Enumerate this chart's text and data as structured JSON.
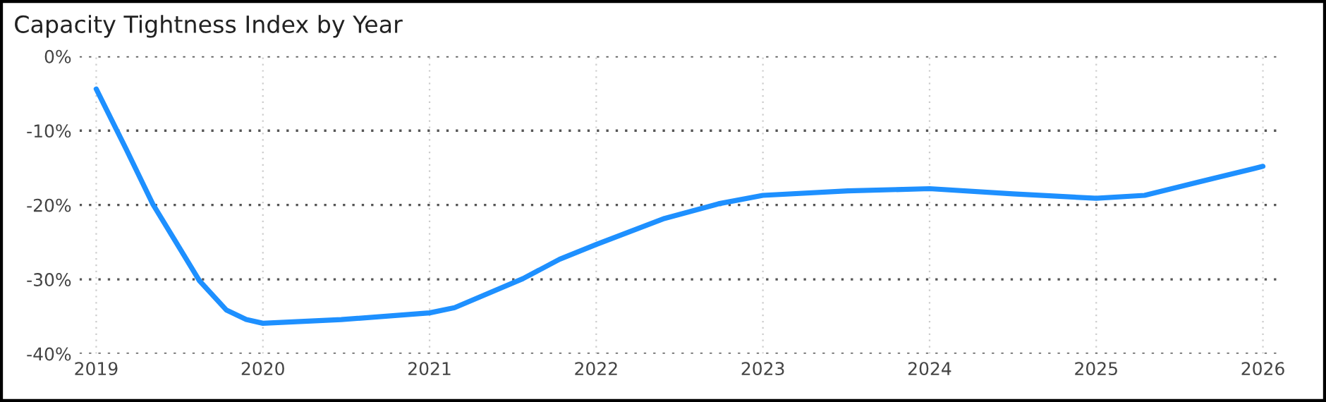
{
  "chart_data": {
    "type": "line",
    "title": "Capacity Tightness Index by Year",
    "x": [
      2019,
      2019.18,
      2019.34,
      2019.62,
      2019.78,
      2019.9,
      2020,
      2020.47,
      2021,
      2021.15,
      2021.56,
      2021.78,
      2022,
      2022.41,
      2022.74,
      2023,
      2023.51,
      2024,
      2024.5,
      2025,
      2025.29,
      2025.56,
      2026
    ],
    "series": [
      {
        "color": "#1e90ff",
        "values": [
          -4.4,
          -12.5,
          -19.9,
          -30.2,
          -34.1,
          -35.4,
          -35.9,
          -35.4,
          -34.5,
          -33.8,
          -29.9,
          -27.3,
          -25.3,
          -21.8,
          -19.8,
          -18.7,
          -18.1,
          -17.8,
          -18.5,
          -19.1,
          -18.7,
          -17.2,
          -14.8
        ]
      }
    ],
    "xlim": [
      2018.9,
      2026.1
    ],
    "xticks": [
      2019,
      2020,
      2021,
      2022,
      2023,
      2024,
      2025,
      2026
    ],
    "ylim": [
      -40,
      0
    ],
    "yticks": [
      {
        "value": -40,
        "label": "-40%"
      },
      {
        "value": -30,
        "label": "-30%"
      },
      {
        "value": -20,
        "label": "-20%"
      },
      {
        "value": -10,
        "label": "-10%"
      },
      {
        "value": 0,
        "label": "0%"
      }
    ],
    "grid": true,
    "marker": "none",
    "line_style": "solid"
  }
}
